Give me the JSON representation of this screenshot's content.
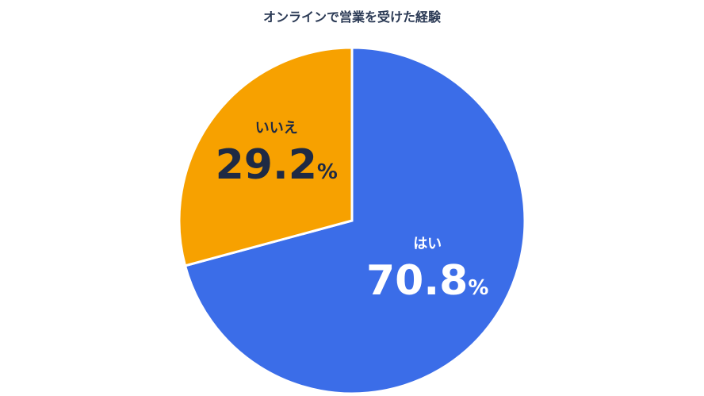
{
  "title": "オンラインで営業を受けた経験",
  "chart_data": {
    "type": "pie",
    "title": "オンラインで営業を受けた経験",
    "slices": [
      {
        "label": "はい",
        "value": 70.8,
        "display": "70.8",
        "unit": "%",
        "color": "#3b6de8",
        "text_color": "#ffffff"
      },
      {
        "label": "いいえ",
        "value": 29.2,
        "display": "29.2",
        "unit": "%",
        "color": "#f7a100",
        "text_color": "#1e2a44"
      }
    ],
    "start_angle_deg": 0,
    "direction": "clockwise"
  }
}
